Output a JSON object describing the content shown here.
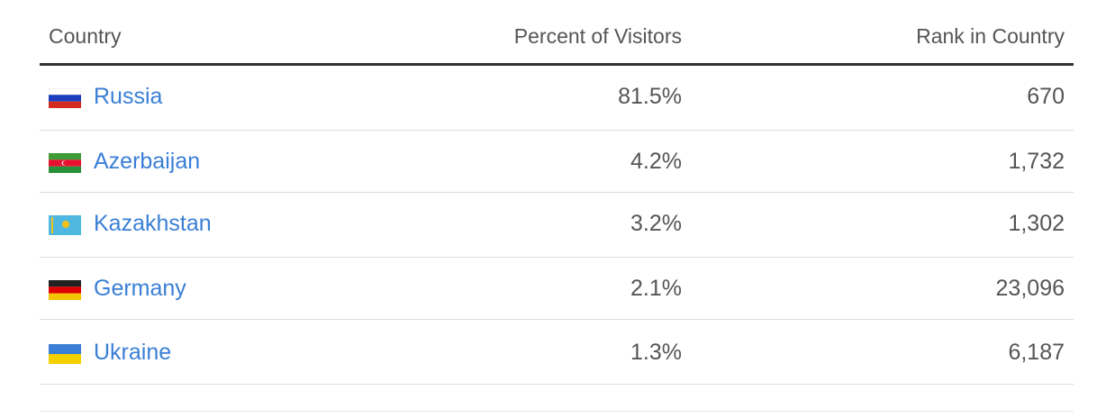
{
  "table": {
    "header": [
      "Country",
      "Percent of Visitors",
      "Rank in Country"
    ],
    "rows": [
      [
        "Russia",
        "81.5%",
        "670"
      ],
      [
        "Azerbaijan",
        "4.2%",
        "1,732"
      ],
      [
        "Kazakhstan",
        "3.2%",
        "1,302"
      ],
      [
        "Germany",
        "2.1%",
        "23,096"
      ],
      [
        "Ukraine",
        "1.3%",
        "6,187"
      ]
    ]
  }
}
